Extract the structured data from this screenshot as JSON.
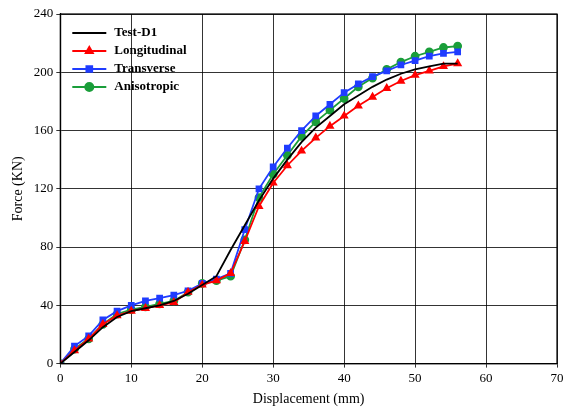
{
  "chart_data": {
    "type": "line",
    "x_label": "Displacement (mm)",
    "y_label": "Force (KN)",
    "x": [
      0,
      2,
      4,
      6,
      8,
      10,
      12,
      14,
      16,
      18,
      20,
      22,
      24,
      26,
      28,
      30,
      32,
      34,
      36,
      38,
      40,
      42,
      44,
      46,
      48,
      50,
      52,
      54,
      56
    ],
    "series": [
      {
        "name": "Test-D1",
        "color": "#000000",
        "marker": "none",
        "line_style": "solid",
        "values": [
          0,
          8,
          16,
          25,
          32,
          36,
          38,
          40,
          43,
          48,
          54,
          60,
          78,
          95,
          112,
          127,
          140,
          152,
          162,
          170,
          178,
          184,
          190,
          195,
          199,
          202,
          204,
          206,
          206
        ]
      },
      {
        "name": "Longitudinal",
        "color": "#ff0000",
        "marker": "triangle",
        "line_style": "solid",
        "values": [
          0,
          9,
          17,
          27,
          33,
          36,
          38,
          40,
          42,
          49,
          54,
          57,
          62,
          84,
          108,
          124,
          136,
          146,
          155,
          163,
          170,
          177,
          183,
          189,
          194,
          198,
          201,
          204,
          206
        ]
      },
      {
        "name": "Transverse",
        "color": "#1f3cff",
        "marker": "square",
        "line_style": "solid",
        "values": [
          0,
          12,
          19,
          30,
          36,
          40,
          43,
          45,
          47,
          50,
          55,
          58,
          62,
          92,
          120,
          135,
          148,
          160,
          170,
          178,
          186,
          192,
          197,
          201,
          205,
          208,
          211,
          213,
          214
        ]
      },
      {
        "name": "Anisotropic",
        "color": "#1a9e3a",
        "marker": "circle",
        "line_style": "solid",
        "values": [
          0,
          10,
          17,
          27,
          34,
          37,
          39,
          41,
          43,
          49,
          55,
          57,
          60,
          85,
          114,
          130,
          143,
          156,
          166,
          174,
          182,
          190,
          196,
          202,
          207,
          211,
          214,
          217,
          218
        ]
      }
    ],
    "xlim": [
      0,
      70
    ],
    "xticks": [
      0,
      10,
      20,
      30,
      40,
      50,
      60,
      70
    ],
    "ylim": [
      0,
      240
    ],
    "yticks": [
      0,
      40,
      80,
      120,
      160,
      200,
      240
    ],
    "grid": true,
    "legend": "top-left"
  }
}
